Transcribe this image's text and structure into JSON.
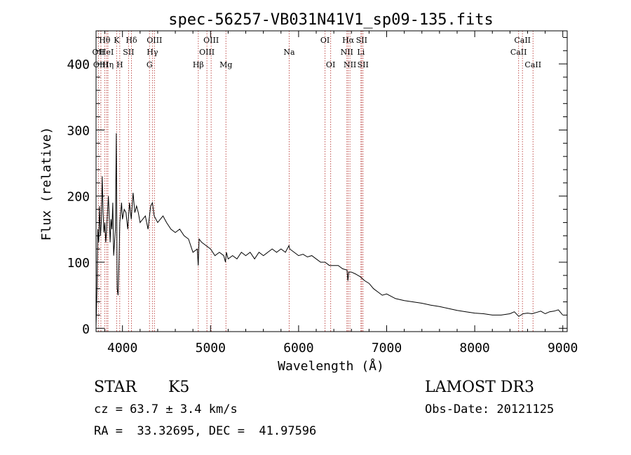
{
  "chart_data": {
    "type": "line",
    "title": "spec-56257-VB031N41V1_sp09-135.fits",
    "xlabel": "Wavelength (Å)",
    "ylabel": "Flux (relative)",
    "xlim": [
      3700,
      9050
    ],
    "ylim": [
      -5,
      450
    ],
    "xticks": [
      4000,
      5000,
      6000,
      7000,
      8000,
      9000
    ],
    "yticks": [
      0,
      100,
      200,
      300,
      400
    ],
    "line_color": "#000000",
    "marker_color": "#c0504d",
    "series": [
      {
        "name": "spectrum",
        "x": [
          3700,
          3710,
          3720,
          3730,
          3740,
          3750,
          3760,
          3770,
          3780,
          3790,
          3800,
          3810,
          3820,
          3830,
          3840,
          3850,
          3860,
          3870,
          3880,
          3890,
          3900,
          3910,
          3920,
          3930,
          3940,
          3950,
          3960,
          3970,
          3980,
          3990,
          4000,
          4020,
          4040,
          4060,
          4080,
          4100,
          4120,
          4140,
          4160,
          4180,
          4200,
          4230,
          4260,
          4290,
          4320,
          4340,
          4360,
          4380,
          4400,
          4430,
          4460,
          4500,
          4550,
          4600,
          4650,
          4700,
          4750,
          4800,
          4850,
          4860,
          4870,
          4900,
          4950,
          5000,
          5050,
          5100,
          5150,
          5170,
          5180,
          5200,
          5250,
          5300,
          5350,
          5400,
          5450,
          5500,
          5550,
          5600,
          5650,
          5700,
          5750,
          5800,
          5850,
          5890,
          5900,
          5950,
          6000,
          6050,
          6100,
          6150,
          6200,
          6250,
          6300,
          6350,
          6400,
          6450,
          6500,
          6550,
          6560,
          6570,
          6600,
          6650,
          6700,
          6750,
          6800,
          6850,
          6900,
          6950,
          7000,
          7100,
          7200,
          7300,
          7400,
          7500,
          7600,
          7700,
          7800,
          7900,
          8000,
          8100,
          8200,
          8300,
          8400,
          8450,
          8500,
          8550,
          8600,
          8650,
          8700,
          8750,
          8800,
          8850,
          8900,
          8950,
          9000
        ],
        "y": [
          2,
          60,
          150,
          130,
          185,
          140,
          160,
          230,
          175,
          145,
          160,
          130,
          150,
          175,
          200,
          170,
          130,
          165,
          150,
          190,
          110,
          130,
          150,
          295,
          60,
          50,
          100,
          160,
          175,
          190,
          165,
          180,
          175,
          150,
          190,
          165,
          205,
          175,
          185,
          175,
          160,
          165,
          170,
          150,
          185,
          190,
          170,
          165,
          160,
          165,
          170,
          160,
          150,
          145,
          150,
          140,
          135,
          115,
          120,
          95,
          135,
          130,
          125,
          120,
          110,
          115,
          110,
          100,
          115,
          105,
          110,
          105,
          115,
          110,
          115,
          105,
          115,
          110,
          115,
          120,
          115,
          120,
          115,
          125,
          120,
          115,
          110,
          112,
          108,
          110,
          105,
          100,
          100,
          95,
          95,
          95,
          90,
          88,
          72,
          85,
          85,
          82,
          78,
          72,
          68,
          60,
          55,
          50,
          52,
          45,
          42,
          40,
          38,
          35,
          33,
          30,
          27,
          25,
          23,
          22,
          20,
          20,
          22,
          25,
          18,
          22,
          23,
          22,
          24,
          26,
          22,
          25,
          26,
          28,
          20
        ]
      }
    ],
    "lines": [
      {
        "label": "Hθ",
        "x": 3798,
        "row": 0
      },
      {
        "label": "OII",
        "x": 3727,
        "row": 1
      },
      {
        "label": "OIII",
        "x": 3755,
        "row": 2
      },
      {
        "label": "HeI",
        "x": 3820,
        "row": 1
      },
      {
        "label": "Hη",
        "x": 3835,
        "row": 2
      },
      {
        "label": "K",
        "x": 3934,
        "row": 0
      },
      {
        "label": "SII",
        "x": 4069,
        "row": 1
      },
      {
        "label": "H",
        "x": 3969,
        "row": 2
      },
      {
        "label": "Hδ",
        "x": 4102,
        "row": 0
      },
      {
        "label": "OIII",
        "x": 4363,
        "row": 0
      },
      {
        "label": "Hγ",
        "x": 4340,
        "row": 1
      },
      {
        "label": "G",
        "x": 4307,
        "row": 2
      },
      {
        "label": "OIII",
        "x": 5007,
        "row": 0
      },
      {
        "label": "OIII",
        "x": 4959,
        "row": 1
      },
      {
        "label": "Hβ",
        "x": 4861,
        "row": 2
      },
      {
        "label": "Mg",
        "x": 5175,
        "row": 2
      },
      {
        "label": "Na",
        "x": 5893,
        "row": 1
      },
      {
        "label": "OI",
        "x": 6300,
        "row": 0
      },
      {
        "label": "OI",
        "x": 6364,
        "row": 2
      },
      {
        "label": "Hα",
        "x": 6563,
        "row": 0
      },
      {
        "label": "SII",
        "x": 6716,
        "row": 0
      },
      {
        "label": "NII",
        "x": 6548,
        "row": 1
      },
      {
        "label": "Li",
        "x": 6708,
        "row": 1
      },
      {
        "label": "NII",
        "x": 6583,
        "row": 2
      },
      {
        "label": "SII",
        "x": 6731,
        "row": 2
      },
      {
        "label": "CaII",
        "x": 8542,
        "row": 0
      },
      {
        "label": "CaII",
        "x": 8498,
        "row": 1
      },
      {
        "label": "CaII",
        "x": 8662,
        "row": 2
      }
    ]
  },
  "footer": {
    "object_class": "STAR",
    "subclass": "K5",
    "survey": "LAMOST DR3",
    "redshift": "cz = 63.7 ± 3.4 km/s",
    "obs_date": "Obs-Date: 20121125",
    "coords": "RA =  33.32695, DEC =  41.97596"
  }
}
